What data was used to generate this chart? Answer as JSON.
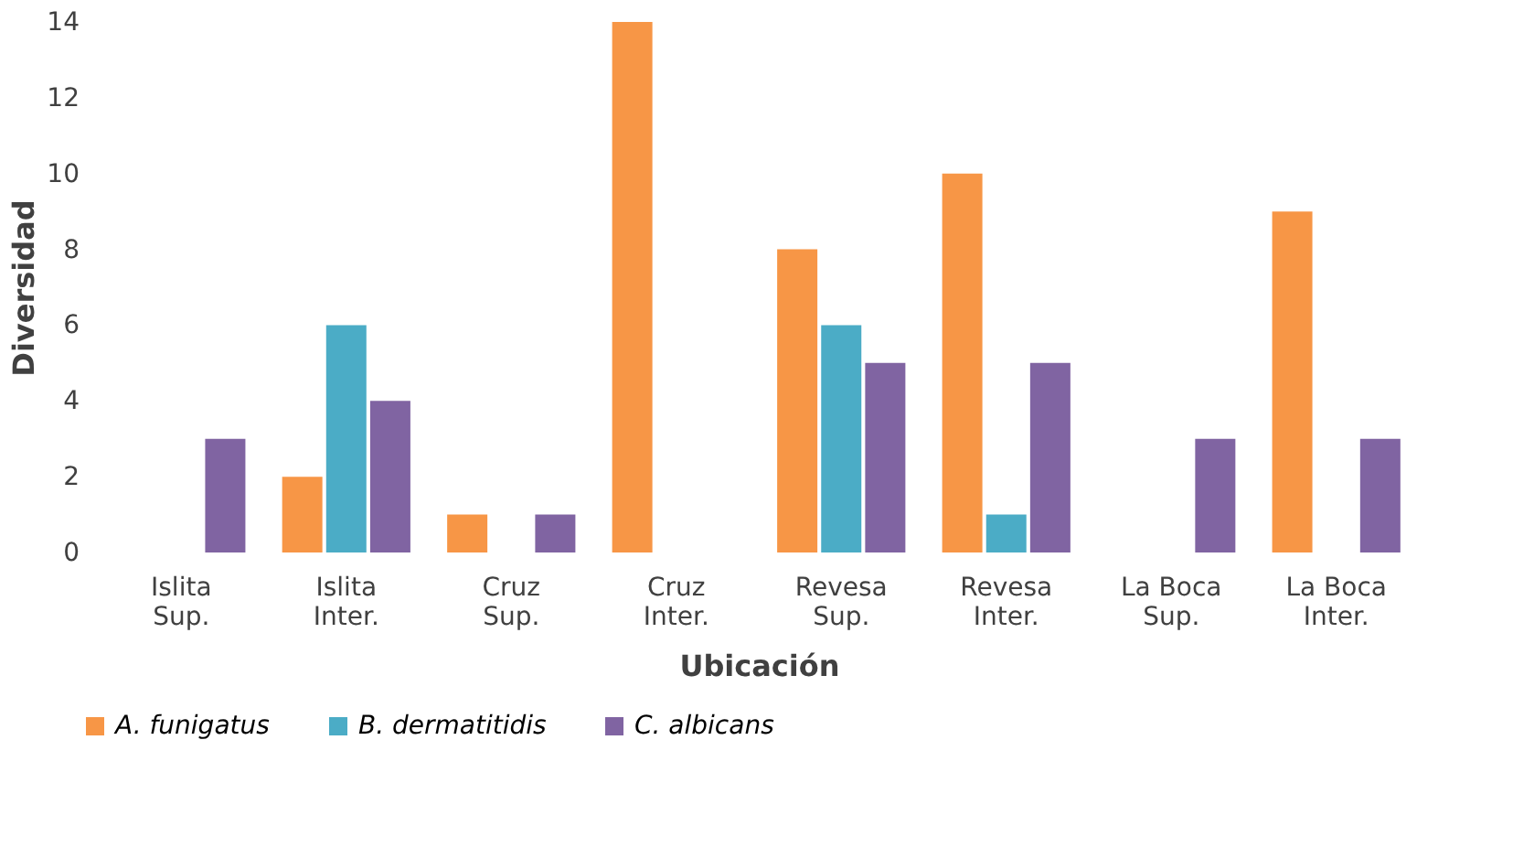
{
  "chart_data": {
    "type": "bar",
    "xlabel": "Ubicación",
    "ylabel": "Diversidad",
    "categories": [
      "Islita\nSup.",
      "Islita\nInter.",
      "Cruz\nSup.",
      "Cruz\nInter.",
      "Revesa\nSup.",
      "Revesa\nInter.",
      "La Boca\nSup.",
      "La Boca\nInter."
    ],
    "series": [
      {
        "name": "A. funigatus",
        "color": "#f79646",
        "values": [
          0,
          2,
          1,
          14,
          8,
          10,
          0,
          9
        ]
      },
      {
        "name": "B. dermatitidis",
        "color": "#4bacc6",
        "values": [
          0,
          6,
          0,
          0,
          6,
          1,
          0,
          0
        ]
      },
      {
        "name": "C. albicans",
        "color": "#8064a2",
        "values": [
          3,
          4,
          1,
          0,
          5,
          5,
          3,
          3
        ]
      }
    ],
    "ylim": [
      0,
      14
    ],
    "yticks": [
      0,
      2,
      4,
      6,
      8,
      10,
      12,
      14
    ],
    "grid": false,
    "legend": "bottom"
  }
}
